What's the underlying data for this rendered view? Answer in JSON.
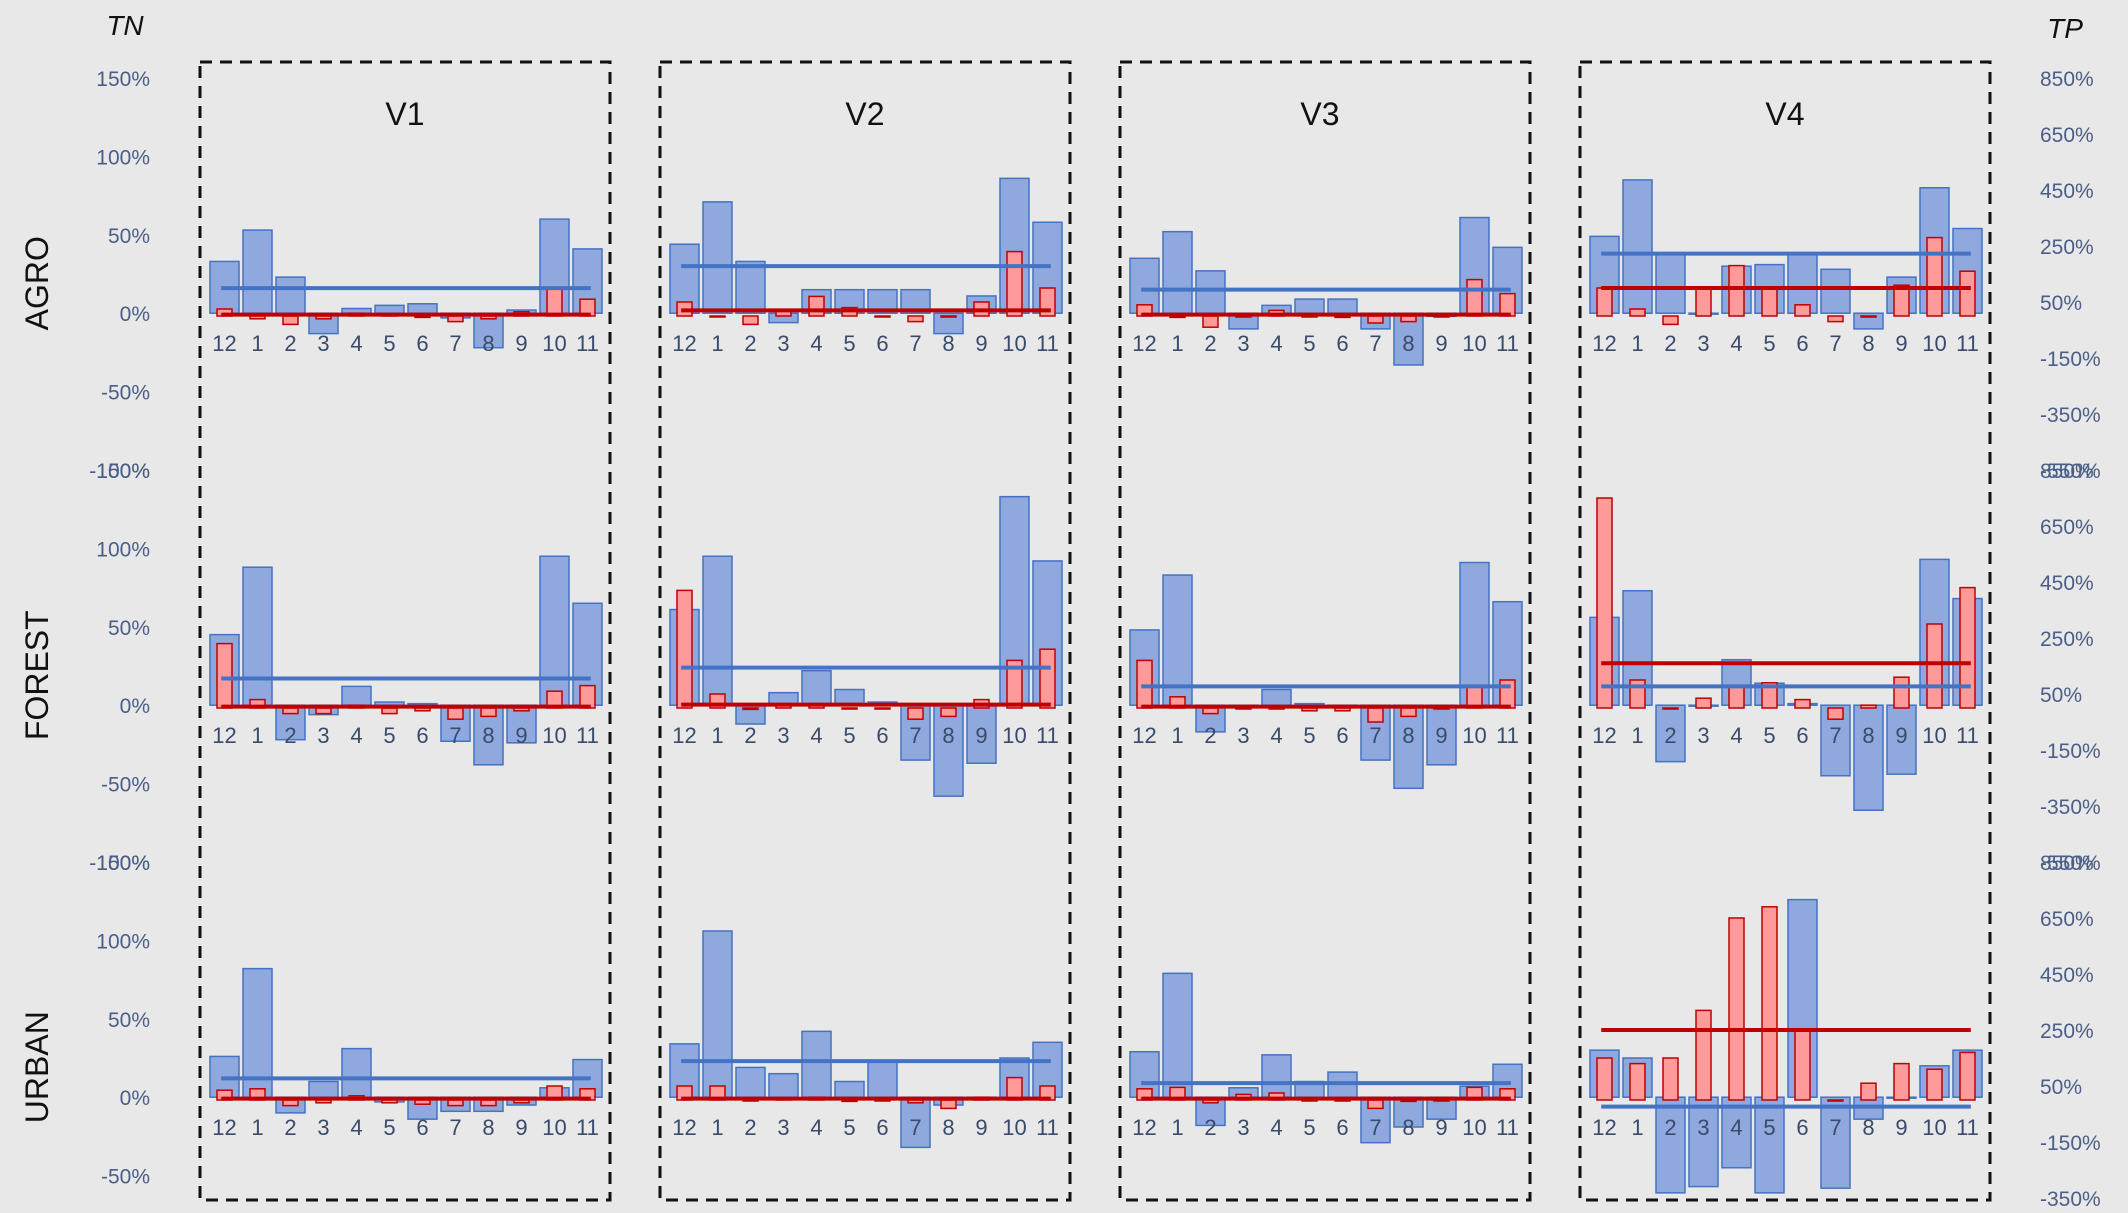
{
  "chart_data": {
    "type": "bar",
    "left_axis_title": "TN",
    "right_axis_title": "TP",
    "rows": [
      "AGRO",
      "FOREST",
      "URBAN"
    ],
    "columns": [
      "V1",
      "V2",
      "V3",
      "V4"
    ],
    "months": [
      "12",
      "1",
      "2",
      "3",
      "4",
      "5",
      "6",
      "7",
      "8",
      "9",
      "10",
      "11"
    ],
    "left_ticks": [
      "150%",
      "100%",
      "50%",
      "0%",
      "-50%",
      "-100%"
    ],
    "right_ticks": [
      "850%",
      "650%",
      "450%",
      "250%",
      "50%",
      "-150%",
      "-350%",
      "-550%"
    ],
    "left_range": [
      -100,
      150
    ],
    "right_range": [
      -550,
      850
    ],
    "colors": {
      "TN": "#8fa9de",
      "TN_edge": "#4472c4",
      "TP": "#ff9a9a",
      "TP_edge": "#c00000",
      "TN_line": "#4472c4",
      "TP_line": "#c00000"
    },
    "panels": [
      {
        "row": "AGRO",
        "col": "V1",
        "tn": [
          33,
          53,
          23,
          -13,
          3,
          5,
          6,
          -3,
          -22,
          2,
          60,
          41
        ],
        "tp": [
          25,
          -10,
          -30,
          -10,
          10,
          5,
          -5,
          -20,
          -10,
          15,
          100,
          60
        ],
        "tn_mean": 16,
        "tp_mean": 5
      },
      {
        "row": "AGRO",
        "col": "V2",
        "tn": [
          44,
          71,
          33,
          -6,
          15,
          15,
          15,
          15,
          -13,
          11,
          86,
          58
        ],
        "tp": [
          50,
          0,
          -30,
          20,
          70,
          30,
          0,
          -20,
          0,
          50,
          230,
          100
        ],
        "tn_mean": 30,
        "tp_mean": 20
      },
      {
        "row": "AGRO",
        "col": "V3",
        "tn": [
          35,
          52,
          27,
          -10,
          5,
          9,
          9,
          -10,
          -33,
          -2,
          61,
          42
        ],
        "tp": [
          40,
          -5,
          -40,
          0,
          20,
          0,
          -5,
          -25,
          -20,
          0,
          130,
          80
        ],
        "tn_mean": 15,
        "tp_mean": 5
      },
      {
        "row": "AGRO",
        "col": "V4",
        "tn": [
          49,
          85,
          38,
          0,
          30,
          31,
          38,
          28,
          -10,
          23,
          80,
          54
        ],
        "tp": [
          100,
          25,
          -30,
          100,
          180,
          100,
          40,
          -20,
          0,
          110,
          280,
          160
        ],
        "tn_mean": 38,
        "tp_mean": 100
      },
      {
        "row": "FOREST",
        "col": "V1",
        "tn": [
          45,
          88,
          -22,
          -6,
          12,
          2,
          1,
          -23,
          -38,
          -24,
          95,
          65
        ],
        "tp": [
          230,
          30,
          -20,
          -20,
          10,
          -20,
          -10,
          -40,
          -30,
          -10,
          60,
          80
        ],
        "tn_mean": 17,
        "tp_mean": 5
      },
      {
        "row": "FOREST",
        "col": "V2",
        "tn": [
          61,
          95,
          -12,
          8,
          22,
          10,
          2,
          -35,
          -58,
          -37,
          133,
          92
        ],
        "tp": [
          420,
          50,
          -5,
          10,
          10,
          0,
          0,
          -40,
          -30,
          30,
          170,
          210
        ],
        "tn_mean": 24,
        "tp_mean": 12
      },
      {
        "row": "FOREST",
        "col": "V3",
        "tn": [
          48,
          83,
          -17,
          0,
          10,
          1,
          -1,
          -35,
          -53,
          -38,
          91,
          66
        ],
        "tp": [
          170,
          40,
          -20,
          0,
          0,
          -10,
          -10,
          -50,
          -30,
          0,
          80,
          100
        ],
        "tn_mean": 12,
        "tp_mean": 5
      },
      {
        "row": "FOREST",
        "col": "V4",
        "tn": [
          56,
          73,
          -36,
          0,
          29,
          14,
          1,
          -45,
          -67,
          -44,
          93,
          68
        ],
        "tp": [
          750,
          100,
          0,
          35,
          75,
          90,
          30,
          -40,
          10,
          110,
          300,
          430
        ],
        "tn_mean": 12,
        "tp_mean": 160
      },
      {
        "row": "URBAN",
        "col": "V1",
        "tn": [
          26,
          82,
          -10,
          10,
          31,
          -3,
          -14,
          -9,
          -9,
          -5,
          6,
          24
        ],
        "tp": [
          35,
          40,
          -20,
          -10,
          15,
          -10,
          -15,
          -20,
          -20,
          -10,
          50,
          40
        ],
        "tn_mean": 12,
        "tp_mean": 5
      },
      {
        "row": "URBAN",
        "col": "V2",
        "tn": [
          34,
          106,
          19,
          15,
          42,
          10,
          23,
          -32,
          -5,
          -1,
          25,
          35
        ],
        "tp": [
          50,
          50,
          0,
          5,
          10,
          -5,
          0,
          -10,
          -30,
          10,
          80,
          50
        ],
        "tn_mean": 23,
        "tp_mean": 5
      },
      {
        "row": "URBAN",
        "col": "V3",
        "tn": [
          29,
          79,
          -18,
          6,
          27,
          10,
          16,
          -29,
          -19,
          -14,
          7,
          21
        ],
        "tp": [
          40,
          45,
          -10,
          20,
          25,
          0,
          0,
          -30,
          -5,
          0,
          45,
          40
        ],
        "tn_mean": 9,
        "tp_mean": 5
      },
      {
        "row": "URBAN",
        "col": "V4",
        "tn": [
          30,
          25,
          -61,
          -57,
          -45,
          -61,
          126,
          -58,
          -14,
          0,
          20,
          30
        ],
        "tp": [
          150,
          130,
          150,
          320,
          650,
          690,
          250,
          0,
          60,
          130,
          110,
          170
        ],
        "tn_mean": -6,
        "tp_mean": 250
      }
    ]
  }
}
